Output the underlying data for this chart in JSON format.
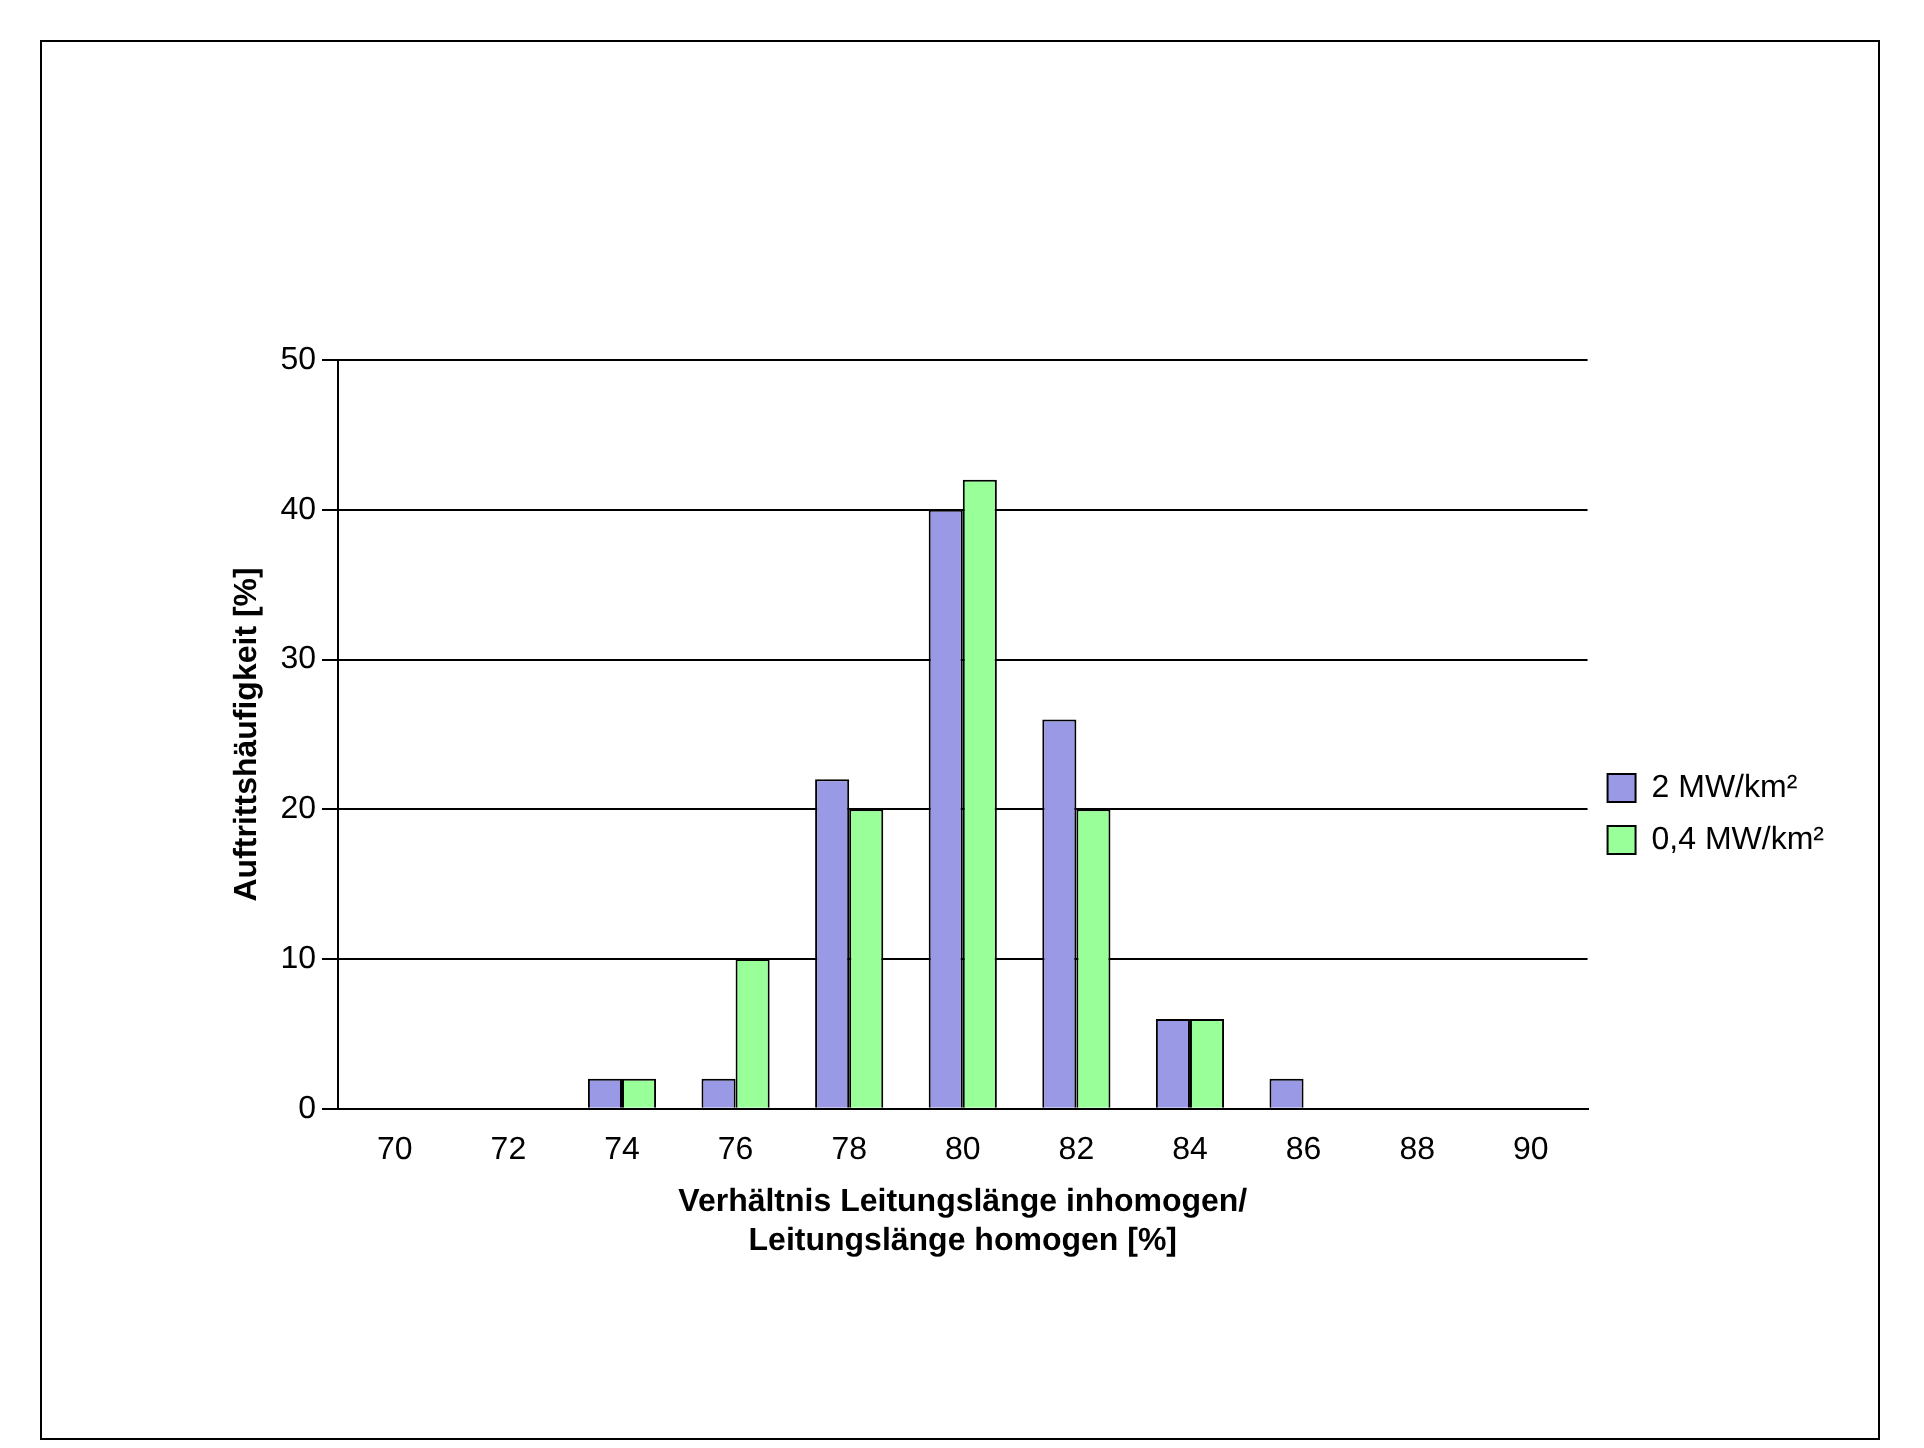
{
  "chart_data": {
    "type": "bar",
    "xlabel": "Verhältnis Leitungslänge inhomogen/\nLeitungslänge homogen [%]",
    "ylabel": "Auftrittshäufigkeit [%]",
    "categories": [
      "70",
      "72",
      "74",
      "76",
      "78",
      "80",
      "82",
      "84",
      "86",
      "88",
      "90"
    ],
    "series": [
      {
        "name": "2 MW/km²",
        "color": "#9999e6",
        "values": [
          0,
          0,
          2,
          2,
          22,
          40,
          26,
          6,
          2,
          0,
          0
        ]
      },
      {
        "name": "0,4 MW/km²",
        "color": "#99ff99",
        "values": [
          0,
          0,
          2,
          10,
          20,
          42,
          20,
          6,
          0,
          0,
          0
        ]
      }
    ],
    "ylim": [
      0,
      50
    ],
    "yticks": [
      0,
      10,
      20,
      30,
      40,
      50
    ],
    "grid": "y",
    "legend": "right"
  }
}
